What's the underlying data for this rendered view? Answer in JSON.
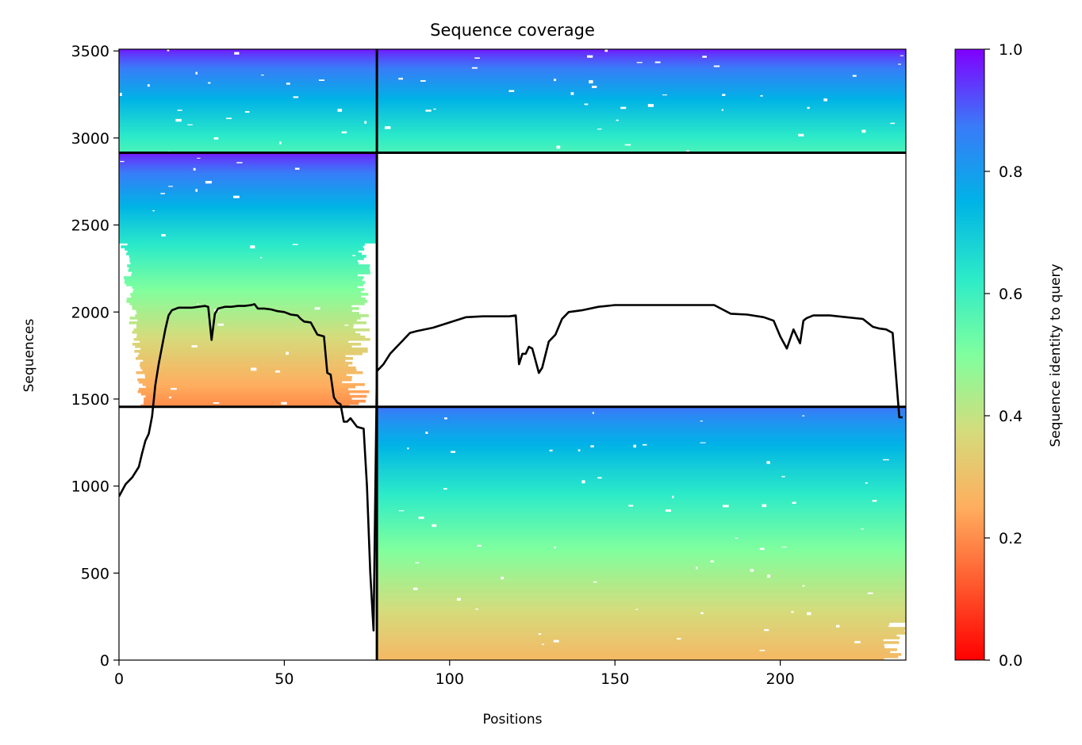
{
  "chart_data": {
    "type": "heatmap",
    "title": "Sequence coverage",
    "xlabel": "Positions",
    "ylabel": "Sequences",
    "xlim": [
      0,
      238
    ],
    "ylim": [
      0,
      3510
    ],
    "xticks": [
      0,
      50,
      100,
      150,
      200
    ],
    "yticks": [
      0,
      500,
      1000,
      1500,
      2000,
      2500,
      3000,
      3500
    ],
    "colorbar": {
      "label": "Sequence identity to query",
      "range": [
        0,
        1
      ],
      "ticks": [
        0.0,
        0.2,
        0.4,
        0.6,
        0.8,
        1.0
      ],
      "tick_labels": [
        "0.0",
        "0.2",
        "0.4",
        "0.6",
        "0.8",
        "1.0"
      ],
      "colormap": "rainbow_r"
    },
    "chain_boundary_x": 78,
    "block_boundaries_y": [
      1455,
      2915
    ],
    "blocks": [
      {
        "name": "paired",
        "x": [
          0,
          238
        ],
        "y": [
          2915,
          3510
        ],
        "identity_top": 0.97,
        "identity_bottom": 0.58
      },
      {
        "name": "unpaired-chain-A",
        "x": [
          0,
          78
        ],
        "y": [
          1455,
          2915
        ],
        "identity_top": 0.97,
        "identity_bottom": 0.2
      },
      {
        "name": "unpaired-chain-B",
        "x": [
          78,
          238
        ],
        "y": [
          0,
          1455
        ],
        "identity_top": 0.88,
        "identity_bottom": 0.28
      }
    ],
    "coverage_line": {
      "x": [
        0,
        2,
        4,
        6,
        7,
        8,
        9,
        10,
        11,
        12,
        13,
        14,
        15,
        16,
        18,
        20,
        22,
        24,
        26,
        27,
        28,
        29,
        30,
        32,
        34,
        36,
        38,
        40,
        41,
        42,
        44,
        46,
        48,
        50,
        52,
        54,
        55,
        56,
        58,
        60,
        62,
        63,
        64,
        65,
        66,
        67,
        68,
        69,
        70,
        72,
        74,
        75,
        76,
        77,
        78,
        80,
        82,
        84,
        86,
        88,
        90,
        95,
        100,
        105,
        110,
        115,
        118,
        120,
        121,
        122,
        123,
        124,
        125,
        126,
        127,
        128,
        130,
        132,
        134,
        136,
        140,
        145,
        150,
        160,
        170,
        180,
        185,
        190,
        195,
        198,
        200,
        202,
        204,
        206,
        207,
        208,
        210,
        212,
        215,
        220,
        225,
        228,
        230,
        232,
        234,
        236,
        237
      ],
      "y": [
        940,
        1010,
        1050,
        1110,
        1190,
        1260,
        1300,
        1400,
        1580,
        1700,
        1800,
        1900,
        1980,
        2010,
        2025,
        2025,
        2025,
        2030,
        2035,
        2030,
        1840,
        1990,
        2020,
        2030,
        2030,
        2035,
        2035,
        2040,
        2045,
        2020,
        2020,
        2015,
        2005,
        2000,
        1985,
        1980,
        1960,
        1945,
        1940,
        1870,
        1860,
        1650,
        1640,
        1510,
        1480,
        1470,
        1370,
        1370,
        1390,
        1340,
        1330,
        1000,
        500,
        170,
        1660,
        1700,
        1760,
        1800,
        1840,
        1880,
        1890,
        1910,
        1940,
        1970,
        1975,
        1975,
        1975,
        1980,
        1700,
        1760,
        1760,
        1800,
        1790,
        1720,
        1650,
        1680,
        1830,
        1870,
        1960,
        2000,
        2010,
        2030,
        2040,
        2040,
        2040,
        2040,
        1990,
        1985,
        1970,
        1950,
        1860,
        1790,
        1900,
        1820,
        1950,
        1965,
        1980,
        1980,
        1980,
        1970,
        1960,
        1915,
        1905,
        1900,
        1880,
        1395,
        1395
      ]
    }
  }
}
